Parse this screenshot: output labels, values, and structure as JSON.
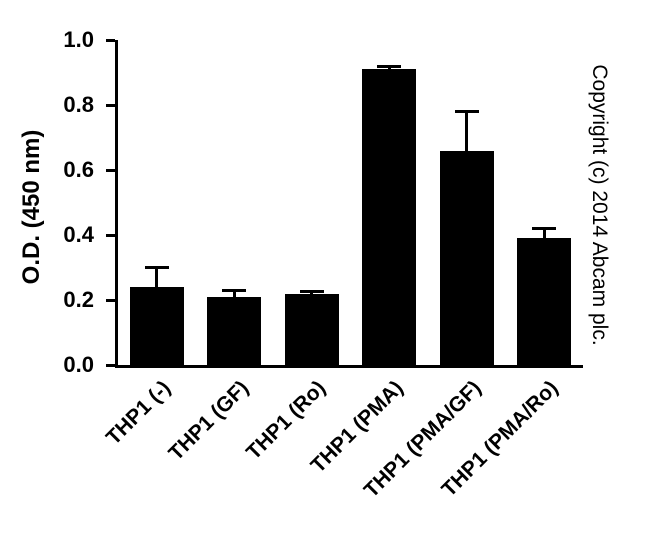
{
  "copyright": "Copyright (c) 2014 Abcam plc.",
  "chart_data": {
    "type": "bar",
    "title": "",
    "categories": [
      "THP1 (-)",
      "THP1 (GF)",
      "THP1 (Ro)",
      "THP1 (PMA)",
      "THP1 (PMA/GF)",
      "THP1 (PMA/Ro)"
    ],
    "values": [
      0.24,
      0.21,
      0.22,
      0.91,
      0.66,
      0.39
    ],
    "errors": [
      0.06,
      0.02,
      0.005,
      0.01,
      0.12,
      0.03
    ],
    "error_direction": "upper",
    "ylabel": "O.D. (450 nm)",
    "xlabel": "",
    "ylim": [
      0.0,
      1.0
    ],
    "ytick_step": 0.2,
    "ytick_labels": [
      "0.0",
      "0.2",
      "0.4",
      "0.6",
      "0.8",
      "1.0"
    ],
    "xtick_rotation_deg": 45,
    "grid": false,
    "legend": false,
    "bar_color": "#000000",
    "background_color": "#ffffff"
  }
}
